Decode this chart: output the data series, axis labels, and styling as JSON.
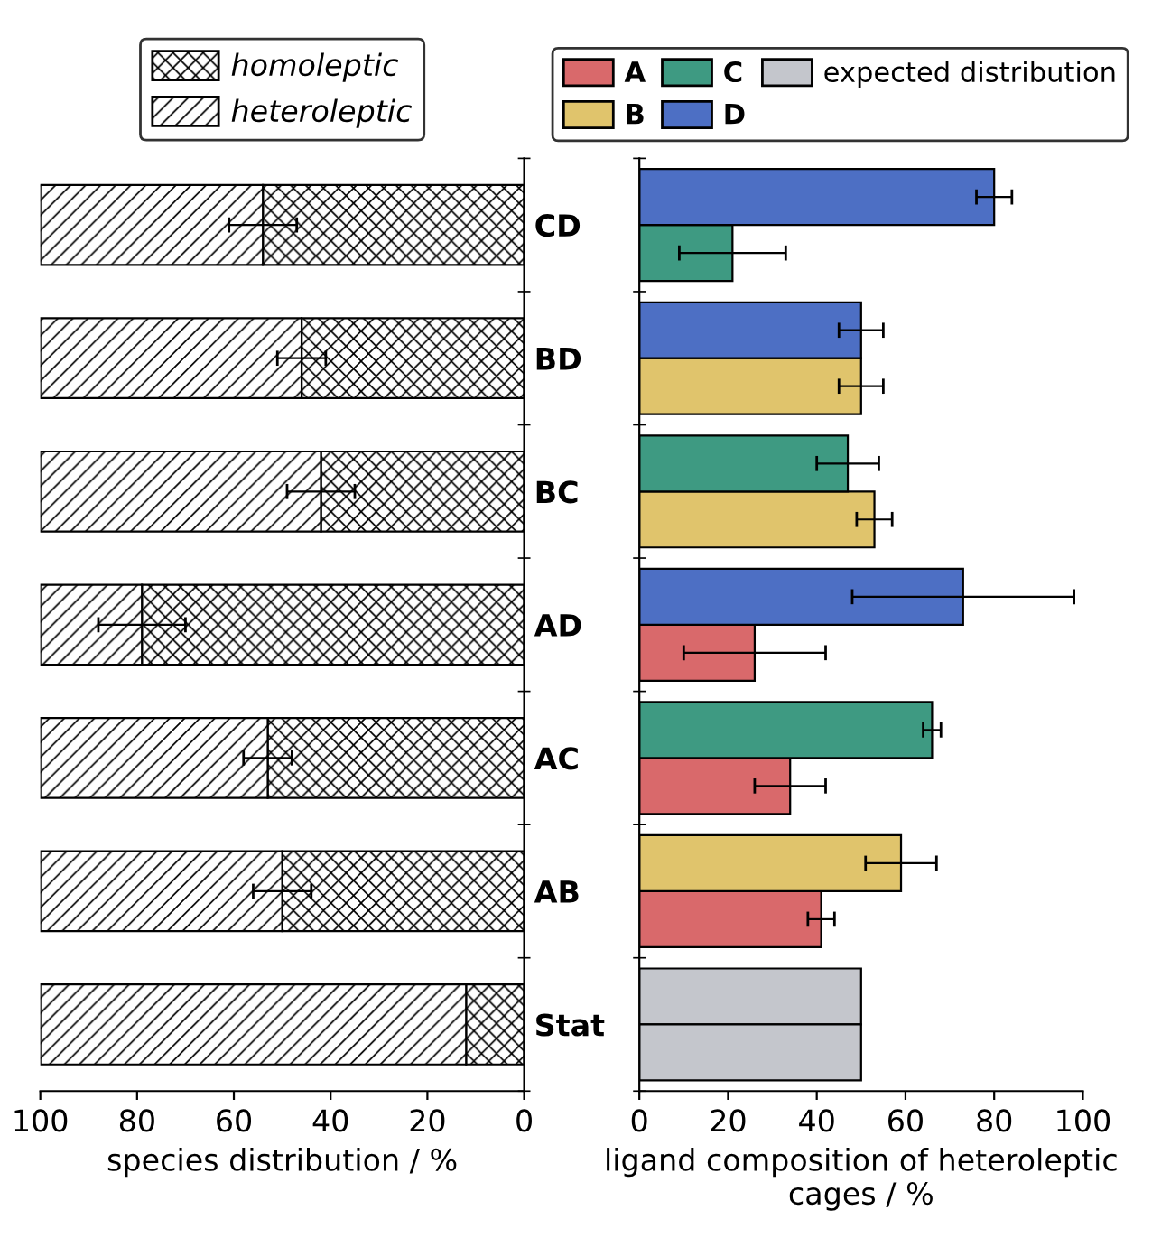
{
  "chart_data": [
    {
      "type": "bar",
      "orientation": "horizontal",
      "stacked": true,
      "legend": "top",
      "xlabel": "species distribution / %",
      "categories": [
        "CD",
        "BD",
        "BC",
        "AD",
        "AC",
        "AB",
        "Stat"
      ],
      "xlim": [
        100,
        0
      ],
      "xticks": [
        100,
        80,
        60,
        40,
        20,
        0
      ],
      "grid": false,
      "series": [
        {
          "name": "homoleptic",
          "color": "#000000",
          "values": [
            54,
            46,
            42,
            79,
            53,
            50,
            12
          ],
          "errors": [
            7,
            5,
            7,
            9,
            5,
            6,
            null
          ]
        },
        {
          "name": "heteroleptic",
          "color": "#000000",
          "values": [
            46,
            54,
            58,
            21,
            47,
            50,
            88
          ]
        }
      ]
    },
    {
      "type": "bar",
      "orientation": "horizontal",
      "stacked": true,
      "legend": "top",
      "xlabel": "ligand composition of heteroleptic cages / %",
      "tick_labels": "x",
      "categories": [
        null,
        null,
        null,
        null,
        null,
        null,
        null,
        null,
        null,
        null,
        null,
        null,
        null,
        null
      ],
      "xlim": [
        0,
        100
      ],
      "xticks": [
        0,
        20,
        40,
        60,
        80,
        100
      ],
      "grid": false,
      "series": [
        {
          "name": "A",
          "color": "#d9696b",
          "values": [
            null,
            null,
            null,
            null,
            null,
            null,
            null,
            26,
            null,
            34,
            null,
            41,
            null,
            null
          ],
          "errors": [
            null,
            null,
            null,
            null,
            null,
            null,
            null,
            16,
            null,
            8,
            null,
            3,
            null,
            null
          ]
        },
        {
          "name": "B",
          "color": "#e0c46c",
          "values": [
            null,
            null,
            null,
            50,
            null,
            53,
            null,
            null,
            null,
            null,
            59,
            null,
            null,
            null
          ],
          "errors": [
            null,
            null,
            null,
            5,
            null,
            4,
            null,
            null,
            null,
            null,
            8,
            null,
            null,
            null
          ]
        },
        {
          "name": "C",
          "color": "#3e9a82",
          "values": [
            null,
            21,
            null,
            null,
            47,
            null,
            null,
            null,
            66,
            null,
            null,
            null,
            null,
            null
          ],
          "errors": [
            null,
            12,
            null,
            null,
            7,
            null,
            null,
            null,
            2,
            null,
            null,
            null,
            null,
            null
          ]
        },
        {
          "name": "D",
          "color": "#4d6fc4",
          "values": [
            80,
            null,
            50,
            null,
            null,
            null,
            73,
            null,
            null,
            null,
            null,
            null,
            null,
            null
          ],
          "errors": [
            4,
            null,
            5,
            null,
            null,
            null,
            25,
            null,
            null,
            null,
            null,
            null,
            null,
            null
          ]
        },
        {
          "name": "expected distribution",
          "color": "#c4c6cc",
          "values": [
            null,
            null,
            null,
            null,
            null,
            null,
            null,
            null,
            null,
            null,
            null,
            null,
            50,
            50
          ]
        }
      ]
    }
  ]
}
